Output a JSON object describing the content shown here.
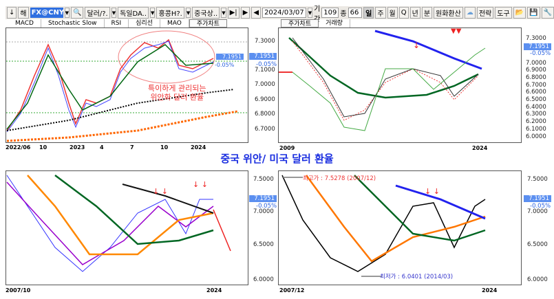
{
  "toolbar": {
    "down_icon": "↓",
    "hae": "해",
    "code": "FX@CNY",
    "c1": "달러/?.",
    "c2": "독일DA..",
    "c3": "홍콩H?.",
    "c4": "중국상..",
    "date": "2024/03/07",
    "period_label": "기간",
    "period": "109",
    "jong_label": "종",
    "jong": "66",
    "units": [
      "일",
      "주",
      "월",
      "Q",
      "년",
      "분"
    ],
    "fx": "원화환산",
    "strategy": "전략",
    "tools": "도구"
  },
  "tabs_left": [
    "MACD",
    "Stochastic Slow",
    "RSI",
    "심리선",
    "MAO",
    "주가차트"
  ],
  "tabs_right": [
    "주가차트",
    "거래량"
  ],
  "price": {
    "value": "7.1951",
    "change": "-0.05%"
  },
  "panel_tl": {
    "yticks": [
      "7.3000",
      "7.1000",
      "7.0000",
      "6.9000",
      "6.8000",
      "6.7000"
    ],
    "xticks": [
      "2022/06",
      "10",
      "2023",
      "4",
      "7",
      "10",
      "2024"
    ],
    "annotation_line1": "특이하게 관리되는",
    "annotation_line2": "위안화 달러 환율"
  },
  "panel_tr": {
    "yticks": [
      "7.3000",
      "7.0000",
      "6.9000",
      "6.8000",
      "6.7000",
      "6.6000",
      "6.5000",
      "6.4000",
      "6.3000",
      "6.2000",
      "6.1000",
      "6.0000"
    ],
    "xticks": [
      "2009",
      "2024"
    ]
  },
  "title": "중국 위안/ 미국 달러 환율",
  "panel_bl": {
    "yticks": [
      "7.5000",
      "7.0000",
      "6.5000",
      "6.0000"
    ],
    "xticks": [
      "2007/10",
      "2024"
    ]
  },
  "panel_br": {
    "yticks": [
      "7.5000",
      "7.0000",
      "6.5000",
      "6.0000"
    ],
    "xticks": [
      "2007/12",
      "2024"
    ],
    "high_label": "최고가 : 7.5278 (2007/12)",
    "low_label": "최저가 : 6.0401 (2014/03)"
  }
}
